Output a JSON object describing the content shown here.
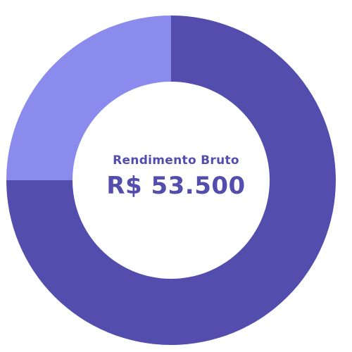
{
  "chart_data": {
    "type": "pie",
    "variant": "donut",
    "center_title": "Rendimento Bruto",
    "center_value": "R$ 53.500",
    "slices": [
      {
        "value": 75,
        "color": "#534eae"
      },
      {
        "value": 25,
        "color": "#8a8bec"
      }
    ],
    "start": "twelve-o'clock",
    "direction": "clockwise",
    "text_color": "#534eae"
  }
}
